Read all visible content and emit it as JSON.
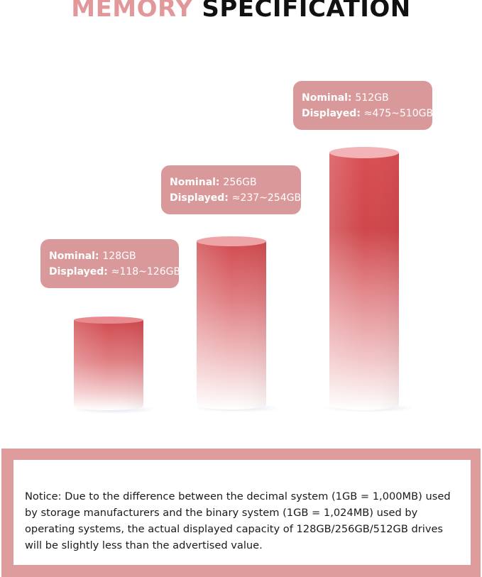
{
  "title": {
    "part1": "MEMORY",
    "part2": "SPECIFICATION",
    "part1_color": "#e2989b",
    "part2_color": "#111111"
  },
  "capacities": [
    {
      "nominal_label": "Nominal:",
      "nominal_value": "128GB",
      "displayed_label": "Displayed:",
      "displayed_value": "≈118~126GB"
    },
    {
      "nominal_label": "Nominal:",
      "nominal_value": "256GB",
      "displayed_label": "Displayed:",
      "displayed_value": "≈237~254GB"
    },
    {
      "nominal_label": "Nominal:",
      "nominal_value": "512GB",
      "displayed_label": "Displayed:",
      "displayed_value": "≈475~510GB"
    }
  ],
  "colors": {
    "accent": "#d9999a",
    "cylinder_top": "#d04a4e",
    "notice_border": "#de9b9c"
  },
  "notice": {
    "text": "Notice: Due to the difference between the decimal system (1GB = 1,000MB) used by storage manufacturers and the binary system (1GB = 1,024MB) used by operating systems, the actual displayed capacity of 128GB/256GB/512GB drives will be slightly less than the advertised value."
  }
}
